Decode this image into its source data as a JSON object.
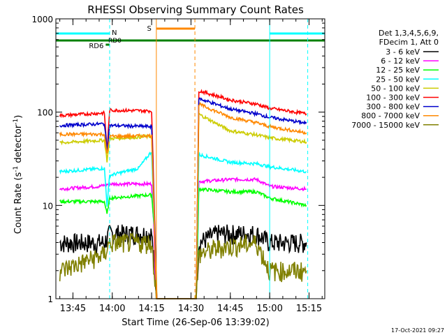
{
  "chart_data": {
    "type": "line",
    "title": "RHESSI Observing Summary Count Rates",
    "xlabel": "Start Time (26-Sep-06 13:39:02)",
    "ylabel_main": "Count Rate (s",
    "ylabel_sup1": "-1",
    "ylabel_mid": " detector",
    "ylabel_sup2": "-1",
    "ylabel_end": ")",
    "yscale": "log",
    "ylim": [
      1,
      1000
    ],
    "xlim_minutes": [
      -6.5,
      96
    ],
    "x_ticks": [
      {
        "minute": 0,
        "label": "13:45"
      },
      {
        "minute": 15,
        "label": "14:00"
      },
      {
        "minute": 30,
        "label": "14:15"
      },
      {
        "minute": 45,
        "label": "14:30"
      },
      {
        "minute": 60,
        "label": "14:45"
      },
      {
        "minute": 75,
        "label": "15:00"
      },
      {
        "minute": 90,
        "label": "15:15"
      }
    ],
    "y_ticks": [
      {
        "value": 1,
        "label": "1"
      },
      {
        "value": 10,
        "label": "10"
      },
      {
        "value": 100,
        "label": "100"
      },
      {
        "value": 1000,
        "label": "1000"
      }
    ],
    "legend_title": [
      "Det 1,3,4,5,6,9,",
      "FDecim 1, Att 0"
    ],
    "series": [
      {
        "name": "3 - 6 keV",
        "color": "#000000",
        "values": [
          [
            -5,
            4
          ],
          [
            12,
            4
          ],
          [
            14,
            5
          ],
          [
            30,
            5
          ],
          [
            32,
            1
          ],
          [
            47,
            1
          ],
          [
            48,
            4
          ],
          [
            55,
            5
          ],
          [
            70,
            5
          ],
          [
            75,
            4
          ],
          [
            89,
            4
          ]
        ]
      },
      {
        "name": "6 - 12 keV",
        "color": "#ff00ff",
        "values": [
          [
            -5,
            15
          ],
          [
            10,
            16
          ],
          [
            14,
            17
          ],
          [
            30,
            17
          ],
          [
            32,
            1
          ],
          [
            47,
            1
          ],
          [
            48,
            18
          ],
          [
            60,
            19
          ],
          [
            70,
            19
          ],
          [
            75,
            16
          ],
          [
            89,
            15
          ]
        ]
      },
      {
        "name": "12 - 25 keV",
        "color": "#00ff00",
        "values": [
          [
            -5,
            11
          ],
          [
            12,
            11
          ],
          [
            13,
            8
          ],
          [
            14,
            12
          ],
          [
            30,
            13
          ],
          [
            31,
            6
          ],
          [
            32,
            1
          ],
          [
            47,
            1
          ],
          [
            48,
            15
          ],
          [
            60,
            14
          ],
          [
            70,
            14
          ],
          [
            75,
            12
          ],
          [
            89,
            10
          ]
        ]
      },
      {
        "name": "25 - 50 keV",
        "color": "#00ffff",
        "values": [
          [
            -5,
            23
          ],
          [
            12,
            25
          ],
          [
            13,
            10
          ],
          [
            14,
            21
          ],
          [
            25,
            25
          ],
          [
            30,
            38
          ],
          [
            32,
            1
          ],
          [
            47,
            1
          ],
          [
            48,
            35
          ],
          [
            60,
            29
          ],
          [
            70,
            28
          ],
          [
            75,
            26
          ],
          [
            89,
            23
          ]
        ]
      },
      {
        "name": "50 - 100 keV",
        "color": "#cccc00",
        "values": [
          [
            -5,
            47
          ],
          [
            12,
            50
          ],
          [
            13,
            30
          ],
          [
            14,
            52
          ],
          [
            30,
            55
          ],
          [
            32,
            1
          ],
          [
            47,
            1
          ],
          [
            48,
            95
          ],
          [
            60,
            63
          ],
          [
            70,
            57
          ],
          [
            75,
            53
          ],
          [
            89,
            48
          ]
        ]
      },
      {
        "name": "100 - 300 keV",
        "color": "#ff0000",
        "values": [
          [
            -5,
            92
          ],
          [
            12,
            98
          ],
          [
            13,
            38
          ],
          [
            14,
            105
          ],
          [
            30,
            103
          ],
          [
            32,
            1
          ],
          [
            47,
            1
          ],
          [
            48,
            170
          ],
          [
            60,
            135
          ],
          [
            70,
            122
          ],
          [
            75,
            110
          ],
          [
            89,
            96
          ]
        ]
      },
      {
        "name": "300 - 800 keV",
        "color": "#0000cc",
        "values": [
          [
            -5,
            72
          ],
          [
            12,
            75
          ],
          [
            13,
            40
          ],
          [
            14,
            72
          ],
          [
            30,
            70
          ],
          [
            32,
            1
          ],
          [
            47,
            1
          ],
          [
            48,
            140
          ],
          [
            60,
            108
          ],
          [
            70,
            96
          ],
          [
            75,
            88
          ],
          [
            89,
            76
          ]
        ]
      },
      {
        "name": "800 - 7000 keV",
        "color": "#ff8800",
        "values": [
          [
            -5,
            58
          ],
          [
            12,
            58
          ],
          [
            13,
            35
          ],
          [
            14,
            55
          ],
          [
            30,
            56
          ],
          [
            32,
            1
          ],
          [
            47,
            1
          ],
          [
            48,
            122
          ],
          [
            60,
            88
          ],
          [
            70,
            77
          ],
          [
            75,
            70
          ],
          [
            89,
            60
          ]
        ]
      },
      {
        "name": "7000 - 15000 keV",
        "color": "#808000",
        "values": [
          [
            -5,
            2
          ],
          [
            12,
            3
          ],
          [
            14,
            4
          ],
          [
            30,
            4
          ],
          [
            32,
            1
          ],
          [
            47,
            1
          ],
          [
            48,
            3
          ],
          [
            55,
            3.5
          ],
          [
            70,
            4
          ],
          [
            75,
            2
          ],
          [
            89,
            2
          ]
        ]
      }
    ],
    "annotations": [
      {
        "label": "N",
        "color": "#00ffff"
      },
      {
        "label": "RD0",
        "color": "#008000"
      },
      {
        "label": "RD6",
        "color": "#008000"
      },
      {
        "label": "S",
        "color": "#ff8800"
      }
    ],
    "timestamp": "17-Oct-2021 09:27"
  }
}
